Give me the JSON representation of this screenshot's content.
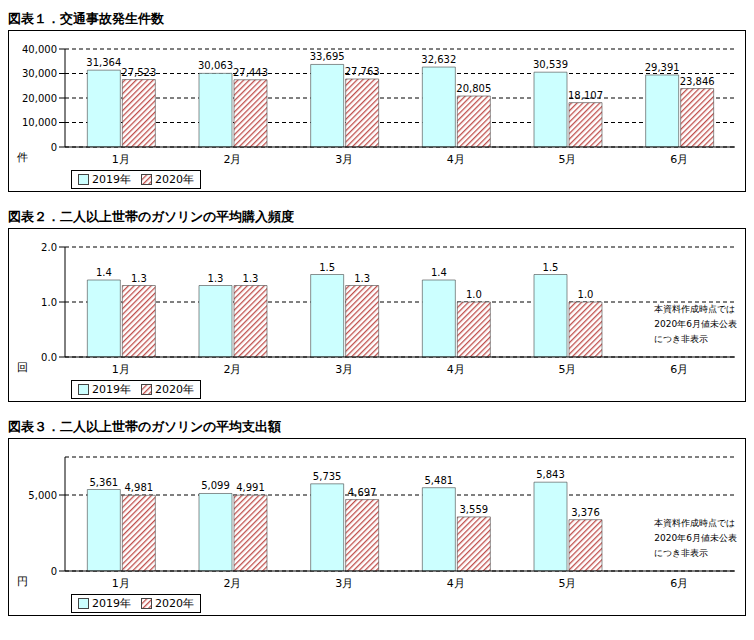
{
  "chart_data": [
    {
      "type": "bar",
      "title": "図表１．交通事故発生件数",
      "y_label": "件",
      "categories": [
        "1月",
        "2月",
        "3月",
        "4月",
        "5月",
        "6月"
      ],
      "series": [
        {
          "name": "2019年",
          "color": "#ccffff",
          "values": [
            31364,
            30063,
            33695,
            32632,
            30539,
            29391
          ],
          "value_labels": [
            "31,364",
            "30,063",
            "33,695",
            "32,632",
            "30,539",
            "29,391"
          ]
        },
        {
          "name": "2020年",
          "color": "#c0504d",
          "values": [
            27523,
            27443,
            27763,
            20805,
            18107,
            23846
          ],
          "value_labels": [
            "27,523",
            "27,443",
            "27,763",
            "20,805",
            "18,107",
            "23,846"
          ]
        }
      ],
      "ylim": [
        0,
        40000
      ],
      "yticks": [
        0,
        {
          "value": 10000,
          "label": "10,000"
        },
        {
          "value": 20000,
          "label": "20,000"
        },
        {
          "value": 30000,
          "label": "30,000"
        },
        {
          "value": 40000,
          "label": "40,000"
        }
      ],
      "grid": true,
      "data_labels": true,
      "legend": "lower left"
    },
    {
      "type": "bar",
      "title": "図表２．二人以上世帯のガソリンの平均購入頻度",
      "y_label": "回",
      "categories": [
        "1月",
        "2月",
        "3月",
        "4月",
        "5月",
        "6月"
      ],
      "series": [
        {
          "name": "2019年",
          "color": "#ccffff",
          "values": [
            1.4,
            1.3,
            1.5,
            1.4,
            1.5,
            null
          ],
          "value_labels": [
            "1.4",
            "1.3",
            "1.5",
            "1.4",
            "1.5",
            null
          ]
        },
        {
          "name": "2020年",
          "color": "#c0504d",
          "values": [
            1.3,
            1.3,
            1.3,
            1.0,
            1.0,
            null
          ],
          "value_labels": [
            "1.3",
            "1.3",
            "1.3",
            "1.0",
            "1.0",
            null
          ]
        }
      ],
      "ylim": [
        0,
        2
      ],
      "yticks": [
        {
          "value": 0,
          "label": "0.0"
        },
        {
          "value": 1,
          "label": "1.0"
        },
        {
          "value": 2,
          "label": "2.0"
        }
      ],
      "grid": true,
      "data_labels": true,
      "legend": "lower left",
      "annotation": "本資料作成時点では\n2020年6月値未公表\nにつき非表示"
    },
    {
      "type": "bar",
      "title": "図表３．二人以上世帯のガソリンの平均支出額",
      "y_label": "円",
      "categories": [
        "1月",
        "2月",
        "3月",
        "4月",
        "5月",
        "6月"
      ],
      "series": [
        {
          "name": "2019年",
          "color": "#ccffff",
          "values": [
            5361,
            5099,
            5735,
            5481,
            5843,
            null
          ],
          "value_labels": [
            "5,361",
            "5,099",
            "5,735",
            "5,481",
            "5,843",
            null
          ]
        },
        {
          "name": "2020年",
          "color": "#c0504d",
          "values": [
            4981,
            4991,
            4697,
            3559,
            3376,
            null
          ],
          "value_labels": [
            "4,981",
            "4,991",
            "4,697",
            "3,559",
            "3,376",
            null
          ]
        }
      ],
      "ylim": [
        0,
        7500
      ],
      "yticks": [
        0,
        {
          "value": 5000,
          "label": "5,000"
        }
      ],
      "grid": true,
      "data_labels": true,
      "legend": "lower left",
      "annotation": "本資料作成時点では\n2020年6月値未公表\nにつき非表示"
    }
  ]
}
